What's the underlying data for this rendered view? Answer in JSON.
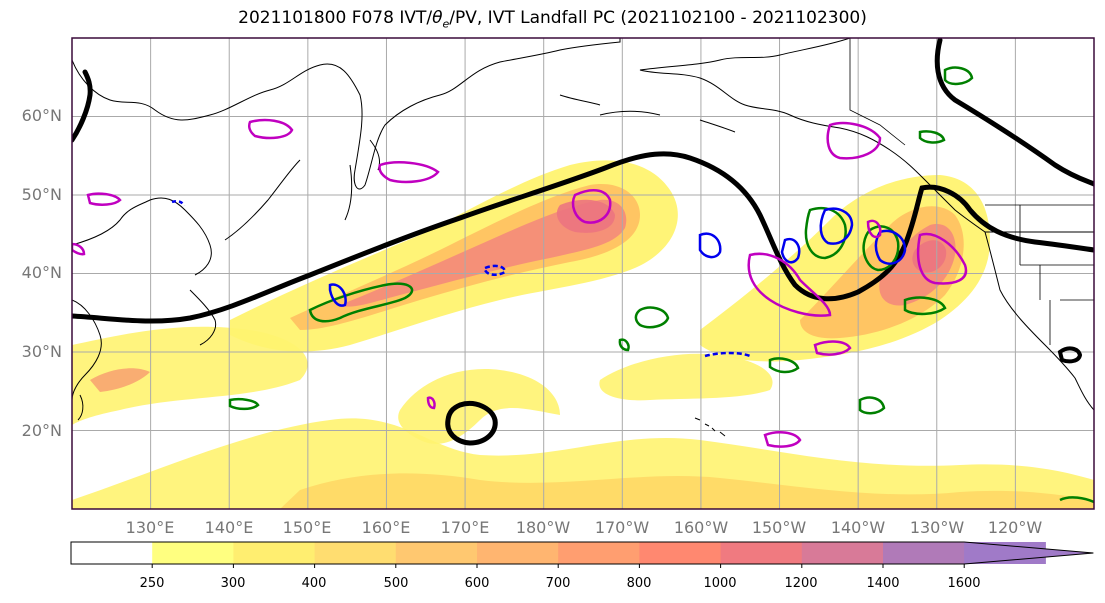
{
  "title_prefix": "2021101800 F078 IVT/",
  "title_theta": "θ",
  "title_theta_sub": "e",
  "title_suffix": "/PV, IVT Landfall PC (2021102100 - 2021102300)",
  "map": {
    "lat_labels": [
      "60°N",
      "50°N",
      "40°N",
      "30°N",
      "20°N"
    ],
    "lon_labels": [
      "130°E",
      "140°E",
      "150°E",
      "160°E",
      "170°E",
      "180°W",
      "170°W",
      "160°W",
      "150°W",
      "140°W",
      "130°W",
      "120°W"
    ],
    "lat_range": [
      10,
      70
    ],
    "lon_range": [
      120,
      250
    ],
    "grid": true
  },
  "colorbar": {
    "levels": [
      "250",
      "300",
      "400",
      "500",
      "600",
      "700",
      "800",
      "1000",
      "1200",
      "1400",
      "1600"
    ],
    "colors": [
      "#ffffff",
      "#ffff80",
      "#ffee70",
      "#ffdd70",
      "#ffc870",
      "#ffb570",
      "#ff9e70",
      "#ff8870",
      "#f07a80",
      "#d87a98",
      "#b07ab8",
      "#a07ac8"
    ],
    "extend": "max"
  },
  "colors": {
    "ivt_low": "#fff370",
    "ivt_mid": "#ffc060",
    "ivt_high": "#f48a7a",
    "ivt_max": "#ec7480",
    "pv_contour": "#000000",
    "theta_e_green": "#008000",
    "theta_e_blue": "#0000ee",
    "landfall_magenta": "#c000c0",
    "coastline": "#000000",
    "gridline": "#aaaaaa"
  }
}
